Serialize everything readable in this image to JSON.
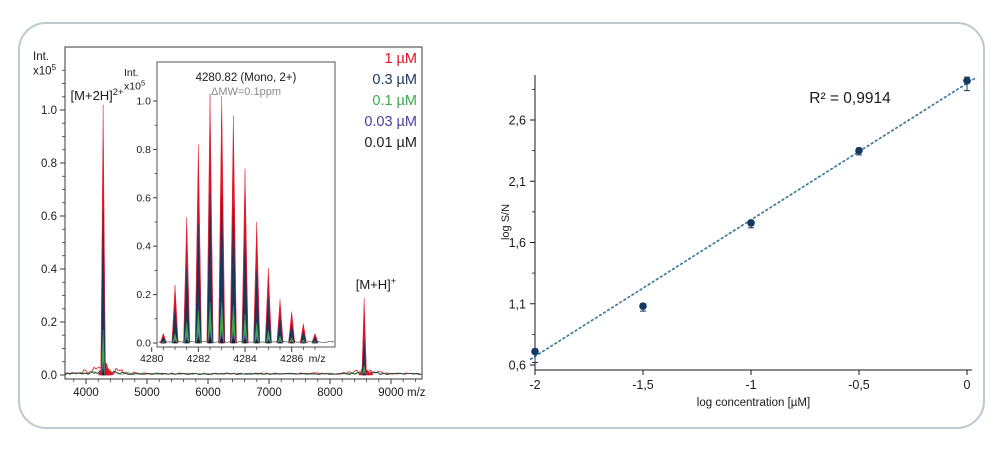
{
  "figure": {
    "border_color": "#bdc9cf",
    "background": "#ffffff"
  },
  "chart_data": [
    {
      "type": "line",
      "name": "mass-spectrum",
      "ylabel_lines": [
        "Int.",
        "x10^5"
      ],
      "xlabel": "m/z",
      "xlim": [
        3656,
        9508
      ],
      "ylim": [
        0,
        1.25
      ],
      "x_ticks": [
        4000,
        5000,
        6000,
        7000,
        8000,
        9000
      ],
      "y_ticks": [
        0.0,
        0.2,
        0.4,
        0.6,
        0.8,
        1.0
      ],
      "grid": false,
      "legend_position": "top-right-inside",
      "legend": [
        {
          "label": "1 µM",
          "color": "#de1126"
        },
        {
          "label": "0.3 µM",
          "color": "#17375e"
        },
        {
          "label": "0.1 µM",
          "color": "#3fa84c"
        },
        {
          "label": "0.03 µM",
          "color": "#4b3f9e"
        },
        {
          "label": "0.01 µM",
          "color": "#1f1f1f"
        }
      ],
      "peaks": [
        {
          "label_base": "[M+2H]",
          "label_sup": "2+",
          "mz": 4281,
          "heights": [
            1.02,
            0.62,
            0.17,
            0.05,
            0.02
          ],
          "satellites": [
            [
              4255,
              0.028
            ],
            [
              4310,
              0.06
            ],
            [
              4336,
              0.045
            ],
            [
              4366,
              0.025
            ],
            [
              4396,
              0.015
            ]
          ]
        },
        {
          "label_base": "[M+H]",
          "label_sup": "+",
          "mz": 8560,
          "heights": [
            0.29,
            0.13,
            0.035,
            0.012,
            0.006
          ],
          "satellites": [
            [
              8515,
              0.008
            ],
            [
              8610,
              0.02
            ],
            [
              8660,
              0.012
            ]
          ]
        }
      ],
      "inset": {
        "title": "4280.82 (Mono, 2+)",
        "subtitle": "ΔMW=0.1ppm",
        "subtitle_color": "#8b8b8b",
        "ylabel_lines": [
          "Int.",
          "x10^5"
        ],
        "xlabel": "m/z",
        "x_ticks": [
          4280,
          4282,
          4284,
          4286
        ],
        "y_ticks": [
          0.0,
          0.2,
          0.4,
          0.6,
          0.8,
          1.0
        ],
        "isotope_start_mz": 4280.5,
        "isotope_spacing": 0.5,
        "envelope": [
          0.04,
          0.24,
          0.52,
          0.82,
          1.03,
          1.02,
          0.94,
          0.72,
          0.5,
          0.31,
          0.18,
          0.13,
          0.08,
          0.04
        ],
        "series_factors": [
          1.0,
          0.6,
          0.165,
          0.05,
          0.025
        ]
      }
    },
    {
      "type": "scatter",
      "name": "calibration-curve",
      "xlabel": "log concentration [µM]",
      "ylabel": "log S/N",
      "r2_label": "R² = 0,9914",
      "xlim": [
        -2.05,
        0.05
      ],
      "ylim": [
        0.55,
        3.0
      ],
      "grid": false,
      "x_ticks": [
        {
          "v": -2,
          "label": "-2"
        },
        {
          "v": -1.5,
          "label": "-1,5"
        },
        {
          "v": -1,
          "label": "-1"
        },
        {
          "v": -0.5,
          "label": "-0,5"
        },
        {
          "v": 0,
          "label": "0"
        }
      ],
      "y_ticks": [
        {
          "v": 0.6,
          "label": "0,6"
        },
        {
          "v": 1.1,
          "label": "1,1"
        },
        {
          "v": 1.6,
          "label": "1,6"
        },
        {
          "v": 2.1,
          "label": "2,1"
        },
        {
          "v": 2.6,
          "label": "2,6"
        }
      ],
      "points": [
        {
          "x": -2,
          "y": 0.71,
          "err_lo": 0.09,
          "err_hi": 0.02
        },
        {
          "x": -1.5,
          "y": 1.08,
          "err_lo": 0.04,
          "err_hi": 0.02
        },
        {
          "x": -1,
          "y": 1.76,
          "err_lo": 0.04,
          "err_hi": 0.02
        },
        {
          "x": -0.5,
          "y": 2.35,
          "err_lo": 0.035,
          "err_hi": 0.02
        },
        {
          "x": 0,
          "y": 2.92,
          "err_lo": 0.08,
          "err_hi": 0.03
        }
      ],
      "trendline": {
        "x1": -2.02,
        "y1": 0.648,
        "x2": 0.04,
        "y2": 2.944,
        "style": "dotted"
      },
      "point_color": "#15395f",
      "line_color": "#3d7a99"
    }
  ]
}
